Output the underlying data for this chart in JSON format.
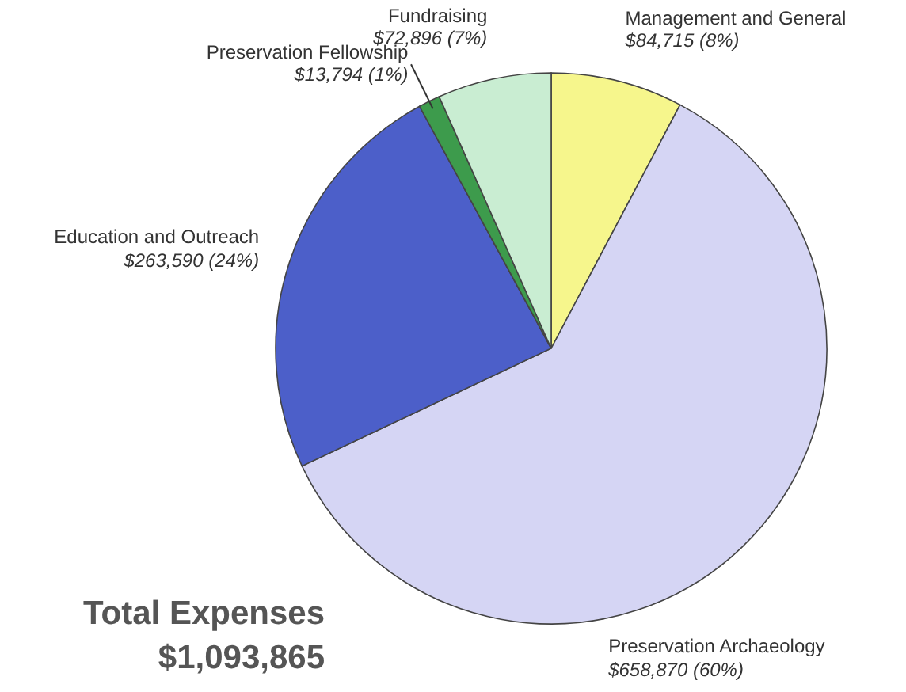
{
  "chart_data": {
    "type": "pie",
    "categories": [
      "Management and General",
      "Preservation Archaeology",
      "Education and Outreach",
      "Preservation Fellowship",
      "Fundraising"
    ],
    "values": [
      84715,
      658870,
      263590,
      13794,
      72896
    ],
    "value_labels": [
      "$84,715 (8%)",
      "$658,870 (60%)",
      "$263,590 (24%)",
      "$13,794 (1%)",
      "$72,896 (7%)"
    ],
    "colors": [
      "#f6f68c",
      "#d5d5f4",
      "#4c5fc9",
      "#3d9b4c",
      "#c9edd2"
    ],
    "annotations": [
      "Total Expenses",
      "$1,093,865"
    ]
  }
}
